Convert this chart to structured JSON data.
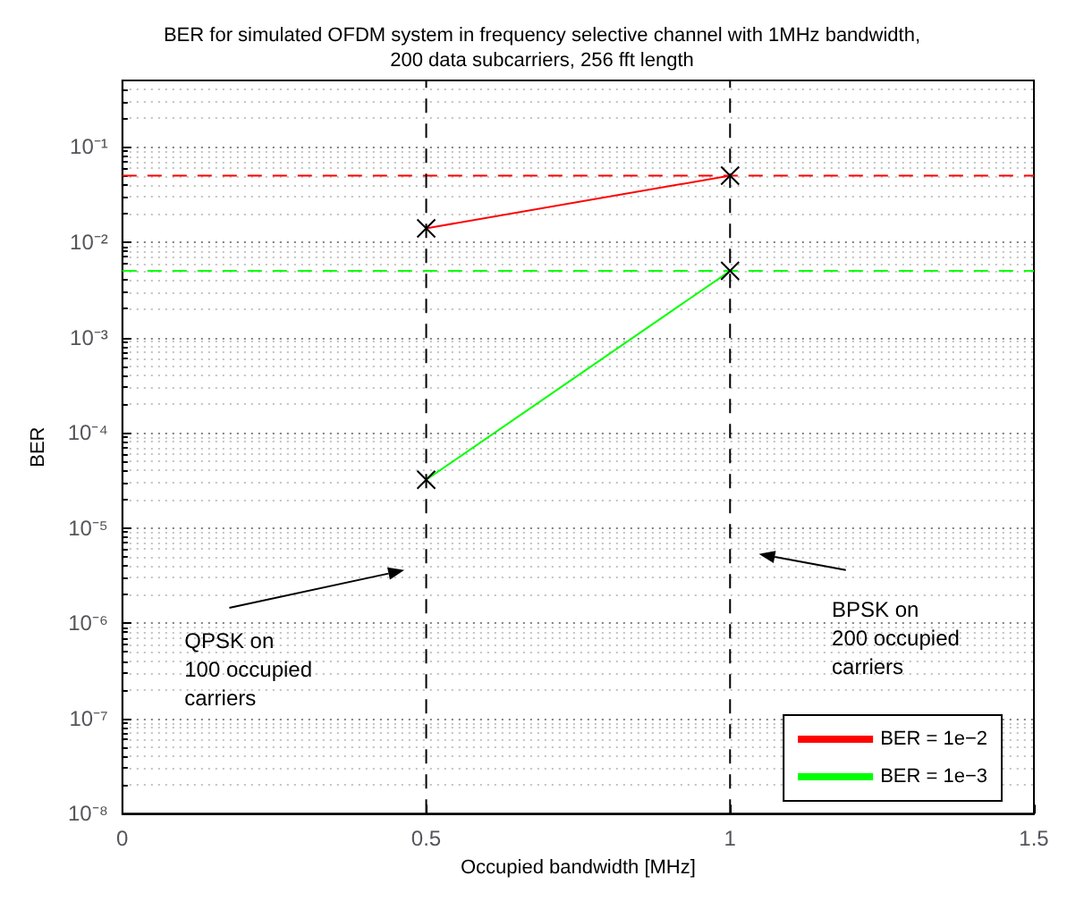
{
  "chart_data": {
    "type": "line",
    "title": "BER for simulated OFDM system in frequency selective channel with 1MHz bandwidth,\n200 data subcarriers, 256 fft length",
    "xlabel": "Occupied bandwidth [MHz]",
    "ylabel": "BER",
    "x": [
      0.5,
      1
    ],
    "series": [
      {
        "name": "BER = 1e−2",
        "color": "#ff0000",
        "values": [
          0.014,
          0.05
        ]
      },
      {
        "name": "BER = 1e−3",
        "color": "#00ff00",
        "values": [
          3.2e-05,
          0.005
        ]
      }
    ],
    "xlim": [
      0,
      1.5
    ],
    "xticks": [
      0,
      0.5,
      1,
      1.5
    ],
    "ylim": [
      1e-08,
      0.5
    ],
    "yticks": [
      {
        "value": 1e-08,
        "label": "10⁻⁸"
      },
      {
        "value": 1e-07,
        "label": "10⁻⁷"
      },
      {
        "value": 1e-06,
        "label": "10⁻⁶"
      },
      {
        "value": 1e-05,
        "label": "10⁻⁵"
      },
      {
        "value": 0.0001,
        "label": "10⁻⁴"
      },
      {
        "value": 0.001,
        "label": "10⁻³"
      },
      {
        "value": 0.01,
        "label": "10⁻²"
      },
      {
        "value": 0.1,
        "label": "10⁻¹"
      }
    ],
    "log": "y",
    "grid": "y",
    "legend": "bottom right",
    "marker": "cross",
    "line_style": "solid",
    "ref_lines": [
      {
        "axis": "y",
        "value": 0.05,
        "color": "#ff0000",
        "line_style": "dashed"
      },
      {
        "axis": "y",
        "value": 0.005,
        "color": "#00ff00",
        "line_style": "dashed"
      },
      {
        "axis": "x",
        "value": 0.5,
        "color": "#000000",
        "line_style": "dashed"
      },
      {
        "axis": "x",
        "value": 1,
        "color": "#000000",
        "line_style": "dashed"
      }
    ],
    "annotations": [
      "QPSK on\n100 occupied\ncarriers",
      "BPSK on\n200 occupied\ncarriers"
    ]
  }
}
